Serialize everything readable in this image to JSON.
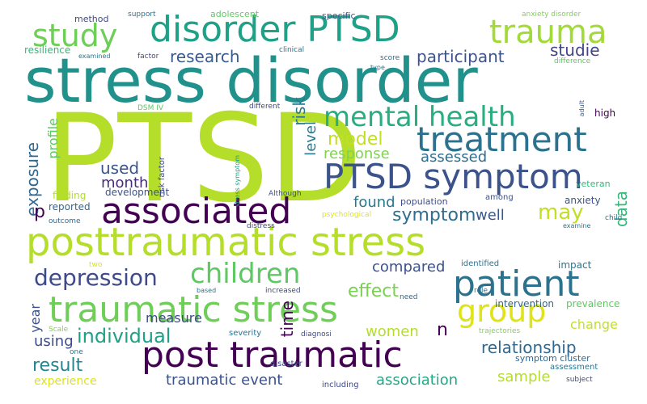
{
  "words": [
    {
      "text": "PTSD",
      "color": "#b5de2b"
    },
    {
      "text": "stress disorder",
      "color": "#21918c"
    },
    {
      "text": "posttraumatic stress",
      "color": "#b5de2b"
    },
    {
      "text": "disorder PTSD",
      "color": "#1fa187"
    },
    {
      "text": "study",
      "color": "#6ece58"
    },
    {
      "text": "trauma",
      "color": "#a2da37"
    },
    {
      "text": "PTSD symptom",
      "color": "#3b528b"
    },
    {
      "text": "treatment",
      "color": "#2c728e"
    },
    {
      "text": "mental health",
      "color": "#28ae80"
    },
    {
      "text": "associated",
      "color": "#440154"
    },
    {
      "text": "traumatic stress",
      "color": "#6ece58"
    },
    {
      "text": "post traumatic",
      "color": "#440154"
    },
    {
      "text": "patient",
      "color": "#2c728e"
    },
    {
      "text": "children",
      "color": "#5ec962"
    },
    {
      "text": "group",
      "color": "#dfe318"
    },
    {
      "text": "depression",
      "color": "#3e4a89"
    },
    {
      "text": "research",
      "color": "#38598c"
    },
    {
      "text": "participant",
      "color": "#3b528b"
    },
    {
      "text": "model",
      "color": "#c2df23"
    },
    {
      "text": "risk",
      "color": "#2a788e"
    },
    {
      "text": "studie",
      "color": "#414487"
    },
    {
      "text": "level",
      "color": "#2a788e"
    },
    {
      "text": "response",
      "color": "#7fd34e"
    },
    {
      "text": "assessed",
      "color": "#2e6e8e"
    },
    {
      "text": "exposure",
      "color": "#31688e"
    },
    {
      "text": "profile",
      "color": "#5ec962"
    },
    {
      "text": "used",
      "color": "#39568c"
    },
    {
      "text": "month",
      "color": "#472d7b"
    },
    {
      "text": "data",
      "color": "#35b779"
    },
    {
      "text": "may",
      "color": "#c2df23"
    },
    {
      "text": "symptom",
      "color": "#2e6e8e"
    },
    {
      "text": "well",
      "color": "#38598c"
    },
    {
      "text": "found",
      "color": "#2a788e"
    },
    {
      "text": "p",
      "color": "#440154"
    },
    {
      "text": "compared",
      "color": "#3b528b"
    },
    {
      "text": "effect",
      "color": "#7ad151"
    },
    {
      "text": "time",
      "color": "#440154"
    },
    {
      "text": "individual",
      "color": "#1fa187"
    },
    {
      "text": "women",
      "color": "#b5de2b"
    },
    {
      "text": "n",
      "color": "#440154"
    },
    {
      "text": "measure",
      "color": "#3e4a89"
    },
    {
      "text": "year",
      "color": "#3b528b"
    },
    {
      "text": "using",
      "color": "#3e4a89"
    },
    {
      "text": "result",
      "color": "#25858e"
    },
    {
      "text": "relationship",
      "color": "#31688e"
    },
    {
      "text": "change",
      "color": "#c2df23"
    },
    {
      "text": "sample",
      "color": "#b5de2b"
    },
    {
      "text": "association",
      "color": "#22a884"
    },
    {
      "text": "traumatic event",
      "color": "#3b528b"
    },
    {
      "text": "experience",
      "color": "#dfe318"
    },
    {
      "text": "development",
      "color": "#3b528b"
    },
    {
      "text": "finding",
      "color": "#b5de2b"
    },
    {
      "text": "reported",
      "color": "#31688e"
    },
    {
      "text": "outcome",
      "color": "#31688e"
    },
    {
      "text": "population",
      "color": "#3e4a89"
    },
    {
      "text": "among",
      "color": "#3b528b"
    },
    {
      "text": "anxiety",
      "color": "#3b528b"
    },
    {
      "text": "identified",
      "color": "#2c728e"
    },
    {
      "text": "impact",
      "color": "#2a788e"
    },
    {
      "text": "intervention",
      "color": "#31688e"
    },
    {
      "text": "prevalence",
      "color": "#5ec962"
    },
    {
      "text": "veteran",
      "color": "#35b779"
    },
    {
      "text": "method",
      "color": "#3e4a89"
    },
    {
      "text": "support",
      "color": "#2c728e"
    },
    {
      "text": "adolescent",
      "color": "#5ec962"
    },
    {
      "text": "specific",
      "color": "#38598c"
    },
    {
      "text": "anxiety disorder",
      "color": "#7fd34e"
    },
    {
      "text": "resilience",
      "color": "#35b779"
    },
    {
      "text": "examined",
      "color": "#2a788e"
    },
    {
      "text": "factor",
      "color": "#3e4a89"
    },
    {
      "text": "clinical",
      "color": "#2c728e"
    },
    {
      "text": "score",
      "color": "#2e6e8e"
    },
    {
      "text": "type",
      "color": "#2c728e"
    },
    {
      "text": "difference",
      "color": "#5ec962"
    },
    {
      "text": "DSM IV",
      "color": "#5ec962"
    },
    {
      "text": "risk factor",
      "color": "#3e4a89"
    },
    {
      "text": "different",
      "color": "#3e4a89"
    },
    {
      "text": "stress symptom",
      "color": "#1fa187"
    },
    {
      "text": "Although",
      "color": "#3b528b"
    },
    {
      "text": "psychological",
      "color": "#dfe318"
    },
    {
      "text": "distress",
      "color": "#3e4a89"
    },
    {
      "text": "examine",
      "color": "#2c728e"
    },
    {
      "text": "child",
      "color": "#2c728e"
    },
    {
      "text": "high",
      "color": "#440154"
    },
    {
      "text": "adult",
      "color": "#38598c"
    },
    {
      "text": "two",
      "color": "#dfe318"
    },
    {
      "text": "based",
      "color": "#2c728e"
    },
    {
      "text": "increased",
      "color": "#3e4a89"
    },
    {
      "text": "need",
      "color": "#31688e"
    },
    {
      "text": "role",
      "color": "#2c728e"
    },
    {
      "text": "Scale",
      "color": "#7fd34e"
    },
    {
      "text": "severity",
      "color": "#2c728e"
    },
    {
      "text": "diagnosi",
      "color": "#3e4a89"
    },
    {
      "text": "disaster",
      "color": "#3e4a89"
    },
    {
      "text": "trajectories",
      "color": "#7fd34e"
    },
    {
      "text": "symptom cluster",
      "color": "#31688e"
    },
    {
      "text": "assessment",
      "color": "#2a788e"
    },
    {
      "text": "subject",
      "color": "#3e4a89"
    },
    {
      "text": "including",
      "color": "#3e4a89"
    },
    {
      "text": "one",
      "color": "#2a788e"
    }
  ]
}
